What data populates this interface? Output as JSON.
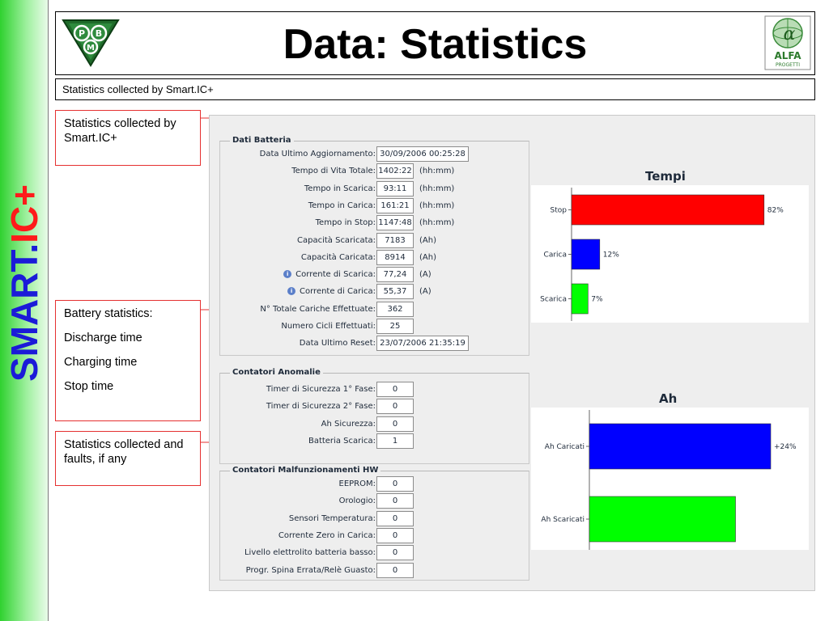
{
  "sidebar": {
    "brand_part1": "SMART.",
    "brand_part2": "IC+"
  },
  "header": {
    "title": "Data: Statistics",
    "logo_left_icon": "pbm-logo-icon",
    "logo_right_icon": "alfa-progetti-logo-icon",
    "logo_right_text": "ALFA",
    "logo_right_subtext": "PROGETTI"
  },
  "subtitle": "Statistics collected by Smart.IC+",
  "callouts": [
    {
      "lines": [
        "Statistics collected by Smart.IC+"
      ]
    },
    {
      "lines": [
        "Battery statistics:",
        "Discharge time",
        "Charging time",
        "Stop time"
      ]
    },
    {
      "lines": [
        "Statistics collected and faults, if any"
      ]
    }
  ],
  "dati_batteria": {
    "title": "Dati Batteria",
    "rows": [
      {
        "label": "Data Ultimo Aggiornamento:",
        "value": "30/09/2006 00:25:28",
        "unit": ""
      },
      {
        "label": "Tempo di Vita Totale:",
        "value": "1402:22",
        "unit": "(hh:mm)"
      },
      {
        "label": "Tempo in Scarica:",
        "value": "93:11",
        "unit": "(hh:mm)"
      },
      {
        "label": "Tempo in Carica:",
        "value": "161:21",
        "unit": "(hh:mm)"
      },
      {
        "label": "Tempo in Stop:",
        "value": "1147:48",
        "unit": "(hh:mm)"
      },
      {
        "label": "Capacità Scaricata:",
        "value": "7183",
        "unit": "(Ah)"
      },
      {
        "label": "Capacità Caricata:",
        "value": "8914",
        "unit": "(Ah)"
      },
      {
        "label": "Corrente di Scarica:",
        "value": "77,24",
        "unit": "(A)"
      },
      {
        "label": "Corrente di Carica:",
        "value": "55,37",
        "unit": "(A)"
      },
      {
        "label": "N° Totale Cariche Effettuate:",
        "value": "362",
        "unit": ""
      },
      {
        "label": "Numero Cicli Effettuati:",
        "value": "25",
        "unit": ""
      },
      {
        "label": "Data Ultimo Reset:",
        "value": "23/07/2006 21:35:19",
        "unit": ""
      }
    ]
  },
  "contatori_anomalie": {
    "title": "Contatori Anomalie",
    "rows": [
      {
        "label": "Timer di Sicurezza 1° Fase:",
        "value": "0"
      },
      {
        "label": "Timer di Sicurezza 2° Fase:",
        "value": "0"
      },
      {
        "label": "Ah Sicurezza:",
        "value": "0"
      },
      {
        "label": "Batteria Scarica:",
        "value": "1"
      }
    ]
  },
  "contatori_malfunzionamenti": {
    "title": "Contatori Malfunzionamenti HW",
    "rows": [
      {
        "label": "EEPROM:",
        "value": "0"
      },
      {
        "label": "Orologio:",
        "value": "0"
      },
      {
        "label": "Sensori Temperatura:",
        "value": "0"
      },
      {
        "label": "Corrente Zero in Carica:",
        "value": "0"
      },
      {
        "label": "Livello elettrolito batteria basso:",
        "value": "0"
      },
      {
        "label": "Progr. Spina Errata/Relè Guasto:",
        "value": "0"
      }
    ]
  },
  "chart_data": [
    {
      "type": "bar",
      "orientation": "horizontal",
      "title": "Tempi",
      "categories": [
        "Stop",
        "Carica",
        "Scarica"
      ],
      "values": [
        82,
        12,
        7
      ],
      "value_labels": [
        "82%",
        "12%",
        "7%"
      ],
      "colors": [
        "#ff0000",
        "#0000ff",
        "#00ff00"
      ],
      "xlim": [
        0,
        100
      ]
    },
    {
      "type": "bar",
      "orientation": "horizontal",
      "title": "Ah",
      "categories": [
        "Ah Caricati",
        "Ah Scaricati"
      ],
      "values": [
        8914,
        7183
      ],
      "value_labels": [
        "+24%",
        ""
      ],
      "colors": [
        "#0000ff",
        "#00ff00"
      ]
    }
  ]
}
